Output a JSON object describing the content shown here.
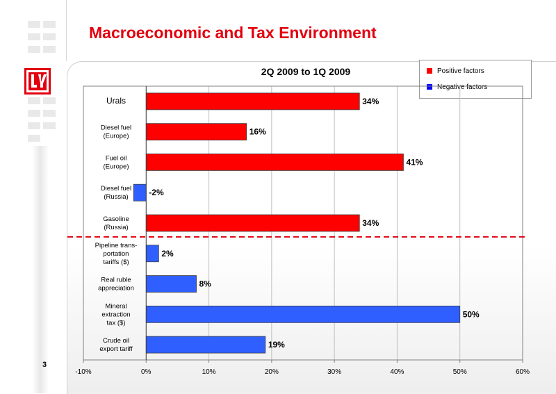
{
  "slide": {
    "title": "Macroeconomic and Tax Environment",
    "page_number": "3",
    "colors": {
      "title": "#e3000f",
      "brand": "#e3000f"
    },
    "logo_icon": "lukoil-logo-icon"
  },
  "legend": {
    "items": [
      {
        "label": "Positive factors",
        "color": "#ff0000"
      },
      {
        "label": "Negative factors",
        "color": "#0000ff"
      }
    ]
  },
  "chart_data": {
    "type": "bar",
    "orientation": "horizontal",
    "title": "2Q 2009 to 1Q 2009",
    "xlim": [
      -10,
      60
    ],
    "x_ticks": [
      "-10%",
      "0%",
      "10%",
      "20%",
      "30%",
      "40%",
      "50%",
      "60%"
    ],
    "grid": true,
    "legend_position": "top-right",
    "divider_after_index": 4,
    "bars": [
      {
        "label": [
          "Urals"
        ],
        "value": 34,
        "display": "34%",
        "group": "positive",
        "color": "#ff0000"
      },
      {
        "label": [
          "Diesel fuel",
          "(Europe)"
        ],
        "value": 16,
        "display": "16%",
        "group": "positive",
        "color": "#ff0000"
      },
      {
        "label": [
          "Fuel oil",
          "(Europe)"
        ],
        "value": 41,
        "display": "41%",
        "group": "positive",
        "color": "#ff0000"
      },
      {
        "label": [
          "Diesel fuel",
          "(Russia)"
        ],
        "value": -2,
        "display": "-2%",
        "group": "negative",
        "color": "#2f5fff"
      },
      {
        "label": [
          "Gasoline",
          "(Russia)"
        ],
        "value": 34,
        "display": "34%",
        "group": "positive",
        "color": "#ff0000"
      },
      {
        "label": [
          "Pipeline trans-",
          "portation",
          "tariffs ($)"
        ],
        "value": 2,
        "display": "2%",
        "group": "negative",
        "color": "#2f5fff"
      },
      {
        "label": [
          "Real ruble",
          "appreciation"
        ],
        "value": 8,
        "display": "8%",
        "group": "negative",
        "color": "#2f5fff"
      },
      {
        "label": [
          "Mineral",
          "extraction",
          "tax ($)"
        ],
        "value": 50,
        "display": "50%",
        "group": "negative",
        "color": "#2f5fff"
      },
      {
        "label": [
          "Crude oil",
          "export tariff"
        ],
        "value": 19,
        "display": "19%",
        "group": "negative",
        "color": "#2f5fff"
      }
    ]
  }
}
